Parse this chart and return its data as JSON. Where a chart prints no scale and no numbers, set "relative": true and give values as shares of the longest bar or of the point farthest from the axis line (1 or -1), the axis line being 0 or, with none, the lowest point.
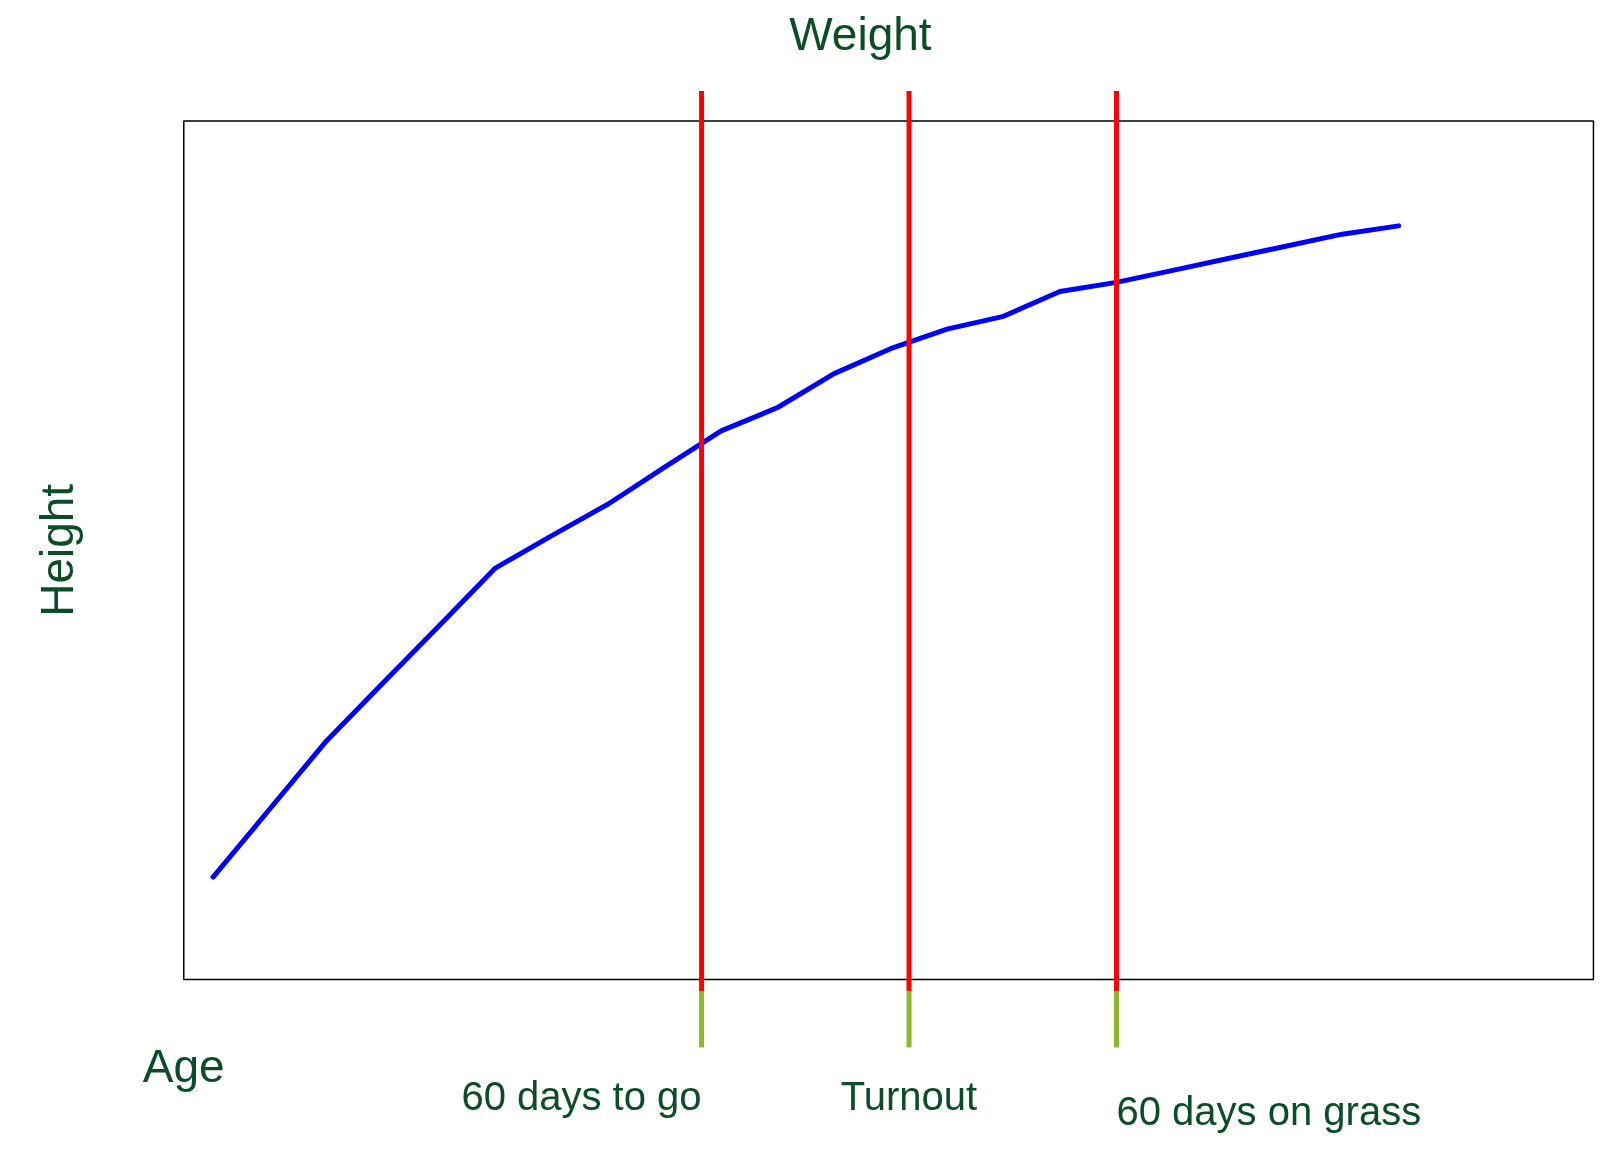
{
  "chart_data": {
    "type": "line",
    "title": "Weight",
    "xlabel": "Age",
    "ylabel": "Height",
    "relative": true,
    "categories": [
      null,
      null,
      null,
      null,
      null,
      null,
      null,
      null,
      null,
      null,
      null,
      null,
      null,
      null,
      null,
      null,
      null,
      null,
      null,
      null,
      null,
      null
    ],
    "series": [
      {
        "color": "#0000ff",
        "values": [
          0.136,
          0.226,
          0.316,
          0.393,
          0.469,
          0.546,
          0.589,
          0.631,
          0.68,
          0.728,
          0.759,
          0.804,
          0.837,
          0.863,
          0.88,
          0.913,
          0.925,
          0.941,
          0.957,
          0.973,
          0.989,
          1
        ]
      }
    ],
    "annotations": [
      "60 days to go",
      "Turnout",
      "60 days on grass"
    ],
    "grid": false,
    "marker": "none",
    "line_style": "solid"
  }
}
